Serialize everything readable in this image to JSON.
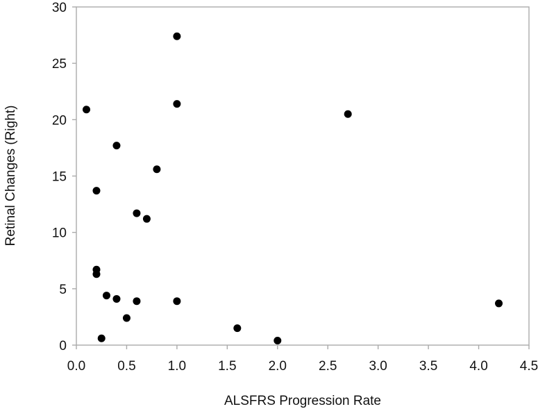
{
  "chart_data": {
    "type": "scatter",
    "title": "",
    "xlabel": "ALSFRS Progression Rate",
    "ylabel": "Retinal Changes (Right)",
    "xlim": [
      0,
      4.5
    ],
    "ylim": [
      0,
      30
    ],
    "xticks": [
      "0.0",
      "0.5",
      "1.0",
      "1.5",
      "2.0",
      "2.5",
      "3.0",
      "3.5",
      "4.0",
      "4.5"
    ],
    "yticks": [
      "0",
      "5",
      "10",
      "15",
      "20",
      "25",
      "30"
    ],
    "grid": false,
    "legend": false,
    "point_color": "#000000",
    "frame_color": "#aaaaaa",
    "points": [
      {
        "x": 0.1,
        "y": 20.9
      },
      {
        "x": 0.2,
        "y": 13.7
      },
      {
        "x": 0.2,
        "y": 6.7
      },
      {
        "x": 0.2,
        "y": 6.3
      },
      {
        "x": 0.25,
        "y": 0.6
      },
      {
        "x": 0.3,
        "y": 4.4
      },
      {
        "x": 0.4,
        "y": 17.7
      },
      {
        "x": 0.4,
        "y": 4.1
      },
      {
        "x": 0.5,
        "y": 2.4
      },
      {
        "x": 0.6,
        "y": 11.7
      },
      {
        "x": 0.6,
        "y": 3.9
      },
      {
        "x": 0.7,
        "y": 11.2
      },
      {
        "x": 0.8,
        "y": 15.6
      },
      {
        "x": 1.0,
        "y": 27.4
      },
      {
        "x": 1.0,
        "y": 21.4
      },
      {
        "x": 1.0,
        "y": 3.9
      },
      {
        "x": 1.6,
        "y": 1.5
      },
      {
        "x": 2.0,
        "y": 0.4
      },
      {
        "x": 2.7,
        "y": 20.5
      },
      {
        "x": 4.2,
        "y": 3.7
      }
    ]
  }
}
